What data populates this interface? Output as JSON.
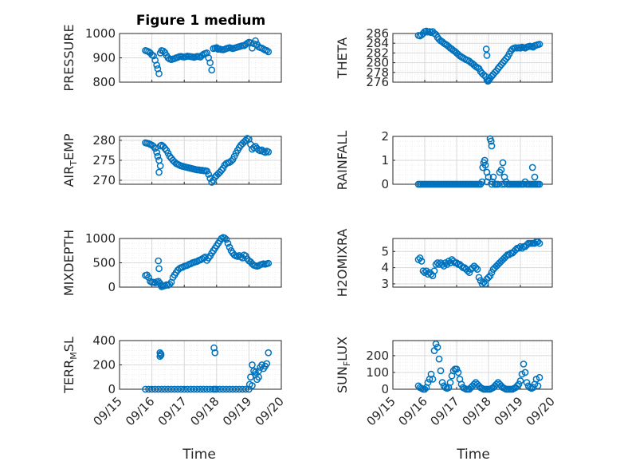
{
  "figure": {
    "title": "Figure 1 medium",
    "xlabel": "Time",
    "x_tick_labels": [
      "09/15",
      "09/16",
      "09/17",
      "09/18",
      "09/19",
      "09/20"
    ],
    "x_range_days": [
      0,
      5
    ],
    "marker_color": "#0072BD"
  },
  "chart_data": [
    {
      "type": "scatter",
      "id": "pressure",
      "ylabel": "PRESSURE",
      "ylim": [
        800,
        1000
      ],
      "yticks": [
        800,
        900,
        1000
      ],
      "xticks": [
        0,
        1,
        2,
        3,
        4,
        5
      ],
      "x": [
        0.8,
        0.85,
        0.9,
        0.95,
        1.0,
        1.05,
        1.1,
        1.15,
        1.18,
        1.22,
        1.26,
        1.3,
        1.35,
        1.4,
        1.45,
        1.5,
        1.55,
        1.6,
        1.65,
        1.7,
        1.75,
        1.8,
        1.85,
        1.9,
        1.95,
        2.0,
        2.05,
        2.1,
        2.15,
        2.2,
        2.25,
        2.3,
        2.35,
        2.4,
        2.45,
        2.5,
        2.55,
        2.6,
        2.65,
        2.7,
        2.75,
        2.8,
        2.85,
        2.9,
        2.95,
        3.0,
        3.02,
        3.05,
        3.1,
        3.15,
        3.2,
        3.25,
        3.3,
        3.35,
        3.4,
        3.45,
        3.5,
        3.55,
        3.6,
        3.65,
        3.7,
        3.75,
        3.8,
        3.85,
        3.9,
        3.95,
        4.0,
        4.05,
        4.1,
        4.15,
        4.2,
        4.25,
        4.3,
        4.35,
        4.4,
        4.45,
        4.5,
        4.55,
        4.6
      ],
      "values": [
        930,
        928,
        925,
        920,
        912,
        908,
        890,
        870,
        855,
        835,
        920,
        930,
        928,
        922,
        910,
        900,
        895,
        893,
        895,
        897,
        900,
        902,
        905,
        906,
        904,
        903,
        905,
        907,
        906,
        905,
        904,
        902,
        904,
        906,
        905,
        903,
        910,
        915,
        918,
        920,
        900,
        880,
        850,
        938,
        940,
        942,
        938,
        935,
        936,
        934,
        933,
        935,
        938,
        940,
        942,
        940,
        938,
        940,
        942,
        944,
        946,
        948,
        950,
        950,
        955,
        960,
        964,
        962,
        940,
        958,
        970,
        955,
        945,
        942,
        940,
        936,
        932,
        930,
        925
      ]
    },
    {
      "type": "scatter",
      "id": "theta",
      "ylabel": "THETA",
      "ylim": [
        276,
        286
      ],
      "yticks": [
        276,
        278,
        280,
        282,
        284,
        286
      ],
      "xticks": [
        0,
        1,
        2,
        3,
        4,
        5
      ],
      "x": [
        0.8,
        0.85,
        0.9,
        0.95,
        1.0,
        1.05,
        1.1,
        1.15,
        1.2,
        1.25,
        1.3,
        1.35,
        1.4,
        1.45,
        1.5,
        1.55,
        1.6,
        1.65,
        1.7,
        1.75,
        1.8,
        1.85,
        1.9,
        1.95,
        2.0,
        2.05,
        2.1,
        2.15,
        2.2,
        2.25,
        2.3,
        2.35,
        2.4,
        2.45,
        2.5,
        2.55,
        2.6,
        2.65,
        2.7,
        2.75,
        2.8,
        2.85,
        2.9,
        2.95,
        2.98,
        3.0,
        3.02,
        3.05,
        3.1,
        3.15,
        3.2,
        3.25,
        3.3,
        3.35,
        3.4,
        3.45,
        3.5,
        3.55,
        3.6,
        3.65,
        3.7,
        3.75,
        3.8,
        3.85,
        3.9,
        3.95,
        4.0,
        4.05,
        4.1,
        4.15,
        4.2,
        4.25,
        4.3,
        4.35,
        4.4,
        4.45,
        4.5,
        4.55,
        4.6,
        2.93,
        2.95
      ],
      "values": [
        285.6,
        285.5,
        285.7,
        286.0,
        286.4,
        286.5,
        286.3,
        286.4,
        286.2,
        286.4,
        286.0,
        285.8,
        285.2,
        284.8,
        284.5,
        284.3,
        284.0,
        283.8,
        283.6,
        283.3,
        283.0,
        282.8,
        282.5,
        282.3,
        282.0,
        281.7,
        281.4,
        281.2,
        281.0,
        280.8,
        280.6,
        280.5,
        280.3,
        280.0,
        279.8,
        279.5,
        279.2,
        279.0,
        278.8,
        278.2,
        277.8,
        277.5,
        277.2,
        276.5,
        276.2,
        276.3,
        276.5,
        276.8,
        277.2,
        277.6,
        278.0,
        278.3,
        278.8,
        279.2,
        279.6,
        280.0,
        280.4,
        280.8,
        281.2,
        281.8,
        282.4,
        282.8,
        283.0,
        283.1,
        283.0,
        283.1,
        283.0,
        283.2,
        283.1,
        283.0,
        283.2,
        283.3,
        283.4,
        283.3,
        283.2,
        283.5,
        283.6,
        283.7,
        283.8,
        282.8,
        281.5
      ]
    },
    {
      "type": "scatter",
      "id": "air_temp",
      "ylabel": "AIR",
      "ylabel_sub": "T",
      "ylabel_after": "EMP",
      "ylim": [
        269,
        281
      ],
      "yticks": [
        270,
        275,
        280
      ],
      "xticks": [
        0,
        1,
        2,
        3,
        4,
        5
      ],
      "x": [
        0.8,
        0.85,
        0.9,
        0.95,
        1.0,
        1.05,
        1.1,
        1.15,
        1.18,
        1.22,
        1.26,
        1.3,
        1.35,
        1.4,
        1.45,
        1.5,
        1.55,
        1.6,
        1.65,
        1.7,
        1.75,
        1.8,
        1.85,
        1.9,
        1.95,
        2.0,
        2.05,
        2.1,
        2.15,
        2.2,
        2.25,
        2.3,
        2.35,
        2.4,
        2.45,
        2.5,
        2.55,
        2.6,
        2.65,
        2.7,
        2.75,
        2.8,
        2.85,
        2.9,
        2.95,
        3.0,
        3.05,
        3.1,
        3.15,
        3.2,
        3.25,
        3.3,
        3.35,
        3.4,
        3.45,
        3.5,
        3.55,
        3.6,
        3.65,
        3.7,
        3.75,
        3.8,
        3.85,
        3.9,
        3.95,
        4.0,
        4.05,
        4.1,
        4.15,
        4.2,
        4.25,
        4.3,
        4.35,
        4.4,
        4.45,
        4.5,
        4.55,
        4.6,
        1.22,
        1.26
      ],
      "values": [
        279.4,
        279.3,
        279.2,
        279.0,
        278.8,
        278.5,
        278.0,
        277.0,
        276.0,
        275.0,
        278.6,
        278.8,
        278.5,
        278.0,
        277.5,
        276.8,
        276.0,
        275.5,
        275.0,
        274.6,
        274.2,
        274.0,
        273.8,
        273.6,
        273.5,
        273.4,
        273.3,
        273.2,
        273.1,
        273.0,
        272.9,
        272.8,
        272.7,
        272.6,
        272.6,
        272.5,
        272.5,
        272.4,
        272.4,
        272.3,
        271.5,
        270.5,
        269.5,
        270.0,
        270.8,
        271.2,
        271.6,
        272.0,
        272.5,
        273.0,
        273.8,
        274.2,
        274.4,
        274.5,
        274.8,
        275.2,
        276.0,
        276.8,
        277.5,
        278.2,
        278.8,
        279.2,
        279.6,
        280.0,
        280.5,
        280.3,
        279.0,
        277.8,
        278.2,
        278.5,
        278.0,
        277.6,
        277.4,
        277.6,
        277.2,
        277.0,
        277.3,
        277.1,
        272.0,
        273.6
      ]
    },
    {
      "type": "scatter",
      "id": "rainfall",
      "ylabel": "RAINFALL",
      "ylim": [
        0,
        2
      ],
      "yticks": [
        0,
        1,
        2
      ],
      "xticks": [
        0,
        1,
        2,
        3,
        4,
        5
      ],
      "x": [
        0.8,
        0.85,
        0.9,
        0.95,
        1.0,
        1.05,
        1.1,
        1.15,
        1.2,
        1.25,
        1.3,
        1.35,
        1.4,
        1.45,
        1.5,
        1.55,
        1.6,
        1.65,
        1.7,
        1.75,
        1.8,
        1.85,
        1.9,
        1.95,
        2.0,
        2.05,
        2.1,
        2.15,
        2.2,
        2.25,
        2.3,
        2.35,
        2.4,
        2.45,
        2.5,
        2.55,
        2.6,
        2.65,
        2.7,
        2.75,
        2.8,
        2.82,
        2.85,
        2.88,
        2.9,
        2.95,
        3.0,
        3.05,
        3.08,
        3.1,
        3.12,
        3.15,
        3.2,
        3.25,
        3.3,
        3.35,
        3.4,
        3.45,
        3.5,
        3.55,
        3.6,
        3.65,
        3.7,
        3.75,
        3.8,
        3.85,
        3.9,
        3.95,
        4.0,
        4.05,
        4.1,
        4.15,
        4.2,
        4.25,
        4.3,
        4.35,
        4.4,
        4.45,
        4.5,
        4.55,
        4.6,
        3.1,
        3.2,
        3.42,
        3.5,
        4.38,
        4.45,
        2.95
      ],
      "values": [
        0,
        0,
        0,
        0,
        0,
        0,
        0,
        0,
        0,
        0,
        0,
        0,
        0,
        0,
        0,
        0,
        0,
        0,
        0,
        0,
        0,
        0,
        0,
        0,
        0,
        0,
        0,
        0,
        0,
        0,
        0,
        0,
        0,
        0,
        0,
        0,
        0,
        0,
        0,
        0,
        0.1,
        0.7,
        0.9,
        1.0,
        0.8,
        0.5,
        0.3,
        1.9,
        1.8,
        1.6,
        0.1,
        0.3,
        0,
        0,
        0,
        0.5,
        0.6,
        0.9,
        0.3,
        0.1,
        0,
        0,
        0,
        0,
        0,
        0,
        0,
        0,
        0,
        0,
        0,
        0.1,
        0,
        0,
        0,
        0,
        0,
        0,
        0,
        0,
        0,
        0,
        0,
        0,
        0,
        0.7,
        0.3,
        0.1
      ]
    },
    {
      "type": "scatter",
      "id": "mixdepth",
      "ylabel": "MIXDEPTH",
      "ylim": [
        0,
        1000
      ],
      "yticks": [
        0,
        500,
        1000
      ],
      "xticks": [
        0,
        1,
        2,
        3,
        4,
        5
      ],
      "x": [
        0.8,
        0.85,
        0.9,
        0.95,
        1.0,
        1.05,
        1.1,
        1.15,
        1.2,
        1.25,
        1.28,
        1.3,
        1.35,
        1.4,
        1.45,
        1.5,
        1.55,
        1.6,
        1.65,
        1.7,
        1.75,
        1.8,
        1.85,
        1.9,
        1.95,
        2.0,
        2.05,
        2.1,
        2.15,
        2.2,
        2.25,
        2.3,
        2.35,
        2.4,
        2.45,
        2.5,
        2.55,
        2.6,
        2.65,
        2.7,
        2.75,
        2.8,
        2.85,
        2.9,
        2.95,
        3.0,
        3.05,
        3.1,
        3.15,
        3.2,
        3.25,
        3.3,
        3.35,
        3.4,
        3.45,
        3.5,
        3.55,
        3.6,
        3.65,
        3.7,
        3.75,
        3.8,
        3.85,
        3.9,
        3.95,
        4.0,
        4.05,
        4.1,
        4.15,
        4.2,
        4.25,
        4.3,
        4.35,
        4.4,
        4.45,
        4.5,
        4.55,
        4.6,
        1.2,
        1.22
      ],
      "values": [
        240,
        250,
        200,
        120,
        100,
        100,
        90,
        110,
        120,
        80,
        40,
        10,
        20,
        30,
        50,
        40,
        60,
        100,
        200,
        250,
        300,
        350,
        380,
        400,
        410,
        430,
        440,
        450,
        470,
        480,
        500,
        510,
        520,
        530,
        550,
        560,
        580,
        600,
        620,
        550,
        600,
        640,
        700,
        750,
        800,
        850,
        900,
        950,
        1000,
        1020,
        1010,
        980,
        900,
        820,
        750,
        700,
        660,
        640,
        630,
        650,
        620,
        600,
        660,
        640,
        580,
        540,
        520,
        480,
        450,
        440,
        430,
        440,
        460,
        470,
        480,
        470,
        480,
        490,
        540,
        380
      ]
    },
    {
      "type": "scatter",
      "id": "h2omixra",
      "ylabel": "H2OMIXRA",
      "ylim": [
        2.8,
        5.8
      ],
      "yticks": [
        3,
        4,
        5
      ],
      "xticks": [
        0,
        1,
        2,
        3,
        4,
        5
      ],
      "x": [
        0.8,
        0.85,
        0.9,
        0.95,
        1.0,
        1.05,
        1.1,
        1.15,
        1.2,
        1.25,
        1.3,
        1.35,
        1.4,
        1.45,
        1.5,
        1.55,
        1.6,
        1.65,
        1.7,
        1.75,
        1.8,
        1.85,
        1.9,
        1.95,
        2.0,
        2.05,
        2.1,
        2.15,
        2.2,
        2.25,
        2.3,
        2.35,
        2.4,
        2.45,
        2.5,
        2.55,
        2.6,
        2.65,
        2.7,
        2.75,
        2.8,
        2.85,
        2.9,
        2.95,
        3.0,
        3.05,
        3.1,
        3.15,
        3.2,
        3.25,
        3.3,
        3.35,
        3.4,
        3.45,
        3.5,
        3.55,
        3.6,
        3.65,
        3.7,
        3.75,
        3.8,
        3.85,
        3.9,
        3.95,
        4.0,
        4.05,
        4.1,
        4.15,
        4.2,
        4.25,
        4.3,
        4.35,
        4.4,
        4.45,
        4.5,
        4.55,
        4.6
      ],
      "values": [
        4.5,
        4.6,
        4.4,
        3.8,
        3.7,
        3.8,
        3.6,
        3.7,
        3.6,
        3.5,
        3.8,
        4.2,
        4.3,
        4.2,
        4.3,
        4.2,
        4.1,
        4.3,
        4.2,
        4.4,
        4.3,
        4.5,
        4.4,
        4.3,
        4.3,
        4.2,
        4.2,
        4.1,
        4.0,
        4.0,
        3.9,
        3.8,
        3.7,
        3.9,
        4.0,
        4.1,
        4.0,
        3.9,
        3.4,
        3.2,
        3.0,
        3.1,
        3.0,
        3.3,
        3.4,
        3.5,
        3.7,
        3.9,
        4.0,
        4.1,
        4.2,
        4.3,
        4.4,
        4.5,
        4.6,
        4.7,
        4.8,
        4.8,
        4.9,
        4.9,
        5.0,
        5.1,
        5.2,
        5.2,
        5.3,
        5.2,
        5.3,
        5.3,
        5.4,
        5.5,
        5.5,
        5.5,
        5.5,
        5.5,
        5.6,
        5.6,
        5.5
      ]
    },
    {
      "type": "scatter",
      "id": "terr_msl",
      "ylabel": "TERR",
      "ylabel_sub": "M",
      "ylabel_after": "SL",
      "ylim": [
        0,
        400
      ],
      "yticks": [
        0,
        200,
        400
      ],
      "xticks": [
        0,
        1,
        2,
        3,
        4,
        5
      ],
      "x": [
        0.8,
        0.9,
        1.0,
        1.1,
        1.2,
        1.25,
        1.28,
        1.3,
        1.4,
        1.5,
        1.6,
        1.7,
        1.8,
        1.9,
        2.0,
        2.1,
        2.2,
        2.3,
        2.4,
        2.5,
        2.6,
        2.7,
        2.8,
        2.9,
        2.92,
        2.95,
        3.0,
        3.1,
        3.2,
        3.3,
        3.4,
        3.5,
        3.6,
        3.7,
        3.8,
        3.9,
        4.0,
        4.02,
        4.05,
        4.1,
        4.15,
        4.2,
        4.25,
        4.3,
        4.35,
        4.4,
        4.45,
        4.5,
        4.55,
        4.6,
        4.1,
        4.2,
        4.3,
        1.25,
        1.28,
        2.95
      ],
      "values": [
        0,
        0,
        0,
        0,
        0,
        270,
        290,
        0,
        0,
        0,
        0,
        0,
        0,
        0,
        0,
        0,
        0,
        0,
        0,
        0,
        0,
        0,
        0,
        0,
        340,
        300,
        0,
        0,
        0,
        0,
        0,
        0,
        0,
        0,
        0,
        0,
        0,
        40,
        100,
        200,
        150,
        120,
        80,
        150,
        180,
        200,
        170,
        190,
        210,
        300,
        30,
        140,
        100,
        300,
        280,
        0
      ]
    },
    {
      "type": "scatter",
      "id": "sun_flux",
      "ylabel": "SUN",
      "ylabel_sub": "F",
      "ylabel_after": "LUX",
      "ylim": [
        0,
        290
      ],
      "yticks": [
        0,
        100,
        200
      ],
      "xticks": [
        0,
        1,
        2,
        3,
        4,
        5
      ],
      "x": [
        0.8,
        0.85,
        0.9,
        0.95,
        1.0,
        1.05,
        1.1,
        1.15,
        1.2,
        1.25,
        1.3,
        1.35,
        1.4,
        1.45,
        1.5,
        1.55,
        1.6,
        1.65,
        1.7,
        1.75,
        1.8,
        1.85,
        1.9,
        1.95,
        2.0,
        2.05,
        2.1,
        2.15,
        2.2,
        2.25,
        2.3,
        2.35,
        2.4,
        2.45,
        2.5,
        2.55,
        2.6,
        2.65,
        2.7,
        2.75,
        2.8,
        2.85,
        2.9,
        2.95,
        3.0,
        3.05,
        3.1,
        3.15,
        3.2,
        3.25,
        3.3,
        3.35,
        3.4,
        3.45,
        3.5,
        3.55,
        3.6,
        3.65,
        3.7,
        3.75,
        3.8,
        3.85,
        3.9,
        3.95,
        4.0,
        4.05,
        4.1,
        4.15,
        4.2,
        4.25,
        4.3,
        4.35,
        4.4,
        4.45,
        4.5,
        4.55,
        4.6
      ],
      "values": [
        20,
        10,
        5,
        0,
        0,
        10,
        40,
        60,
        90,
        60,
        230,
        270,
        250,
        180,
        110,
        40,
        20,
        10,
        5,
        10,
        40,
        80,
        110,
        120,
        120,
        100,
        60,
        30,
        10,
        5,
        0,
        0,
        0,
        10,
        20,
        30,
        40,
        30,
        20,
        10,
        5,
        0,
        0,
        0,
        0,
        0,
        5,
        10,
        20,
        30,
        40,
        30,
        20,
        10,
        5,
        0,
        0,
        0,
        0,
        0,
        5,
        10,
        20,
        30,
        50,
        90,
        150,
        100,
        40,
        20,
        10,
        5,
        10,
        30,
        60,
        20,
        70
      ]
    }
  ]
}
